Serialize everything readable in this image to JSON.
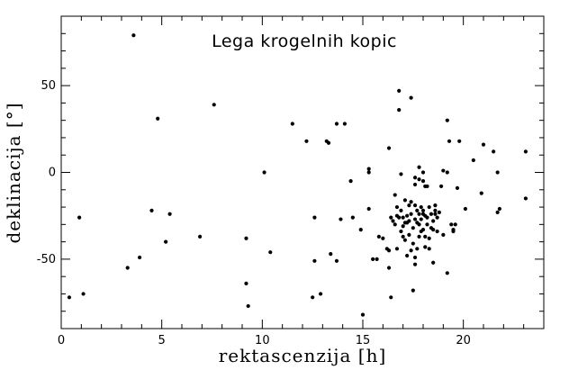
{
  "chart_data": {
    "type": "scatter",
    "title": "Lega krogelnih kopic",
    "xlabel": "rektascenzija [h]",
    "ylabel": "deklinacija [°]",
    "xlim": [
      0,
      24
    ],
    "ylim": [
      -90,
      90
    ],
    "x_ticks": [
      "0",
      "5",
      "10",
      "15",
      "20"
    ],
    "y_ticks": [
      "50",
      "0",
      "-50"
    ],
    "grid": false,
    "marker_color": "#000000",
    "points": [
      {
        "x": 3.6,
        "y": 79
      },
      {
        "x": 7.6,
        "y": 39
      },
      {
        "x": 4.8,
        "y": 31
      },
      {
        "x": 11.5,
        "y": 28
      },
      {
        "x": 13.7,
        "y": 28
      },
      {
        "x": 14.1,
        "y": 28
      },
      {
        "x": 12.2,
        "y": 18
      },
      {
        "x": 13.2,
        "y": 18
      },
      {
        "x": 13.3,
        "y": 17
      },
      {
        "x": 10.1,
        "y": 0
      },
      {
        "x": 0.9,
        "y": -26
      },
      {
        "x": 4.5,
        "y": -22
      },
      {
        "x": 5.4,
        "y": -24
      },
      {
        "x": 3.9,
        "y": -49
      },
      {
        "x": 3.3,
        "y": -55
      },
      {
        "x": 5.2,
        "y": -40
      },
      {
        "x": 6.9,
        "y": -37
      },
      {
        "x": 0.4,
        "y": -72
      },
      {
        "x": 1.1,
        "y": -70
      },
      {
        "x": 9.2,
        "y": -38
      },
      {
        "x": 9.2,
        "y": -64
      },
      {
        "x": 9.3,
        "y": -77
      },
      {
        "x": 10.4,
        "y": -46
      },
      {
        "x": 12.6,
        "y": -26
      },
      {
        "x": 12.6,
        "y": -51
      },
      {
        "x": 12.5,
        "y": -72
      },
      {
        "x": 12.9,
        "y": -70
      },
      {
        "x": 13.4,
        "y": -47
      },
      {
        "x": 13.7,
        "y": -51
      },
      {
        "x": 13.9,
        "y": -27
      },
      {
        "x": 14.4,
        "y": -5
      },
      {
        "x": 14.5,
        "y": -26
      },
      {
        "x": 14.9,
        "y": -33
      },
      {
        "x": 15.3,
        "y": 0
      },
      {
        "x": 15.3,
        "y": 2
      },
      {
        "x": 15.3,
        "y": -21
      },
      {
        "x": 15.5,
        "y": -50
      },
      {
        "x": 15.7,
        "y": -50
      },
      {
        "x": 15.0,
        "y": -82
      },
      {
        "x": 15.8,
        "y": -37
      },
      {
        "x": 16.0,
        "y": -38
      },
      {
        "x": 16.2,
        "y": -44
      },
      {
        "x": 16.3,
        "y": -55
      },
      {
        "x": 16.4,
        "y": -72
      },
      {
        "x": 16.4,
        "y": -26
      },
      {
        "x": 16.3,
        "y": 14
      },
      {
        "x": 16.6,
        "y": -13
      },
      {
        "x": 16.6,
        "y": -30
      },
      {
        "x": 16.7,
        "y": -20
      },
      {
        "x": 16.7,
        "y": -44
      },
      {
        "x": 16.8,
        "y": 36
      },
      {
        "x": 16.8,
        "y": 47
      },
      {
        "x": 16.9,
        "y": -1
      },
      {
        "x": 17.0,
        "y": -26
      },
      {
        "x": 17.0,
        "y": -31
      },
      {
        "x": 17.1,
        "y": -29
      },
      {
        "x": 17.2,
        "y": -25
      },
      {
        "x": 17.3,
        "y": -19
      },
      {
        "x": 17.3,
        "y": -36
      },
      {
        "x": 17.4,
        "y": -17
      },
      {
        "x": 17.4,
        "y": -24
      },
      {
        "x": 17.4,
        "y": 43
      },
      {
        "x": 17.6,
        "y": -3
      },
      {
        "x": 17.6,
        "y": -27
      },
      {
        "x": 17.6,
        "y": -49
      },
      {
        "x": 17.6,
        "y": -53
      },
      {
        "x": 17.7,
        "y": -22
      },
      {
        "x": 17.7,
        "y": -44
      },
      {
        "x": 17.8,
        "y": -4
      },
      {
        "x": 17.8,
        "y": 3
      },
      {
        "x": 17.8,
        "y": -30
      },
      {
        "x": 17.8,
        "y": -37
      },
      {
        "x": 17.9,
        "y": -20
      },
      {
        "x": 18.0,
        "y": -24
      },
      {
        "x": 18.0,
        "y": -33
      },
      {
        "x": 18.1,
        "y": -8
      },
      {
        "x": 18.1,
        "y": -43
      },
      {
        "x": 18.1,
        "y": -25
      },
      {
        "x": 18.2,
        "y": -8
      },
      {
        "x": 18.2,
        "y": -30
      },
      {
        "x": 18.3,
        "y": -38
      },
      {
        "x": 18.4,
        "y": -24
      },
      {
        "x": 18.4,
        "y": -32
      },
      {
        "x": 18.5,
        "y": -52
      },
      {
        "x": 18.6,
        "y": -24
      },
      {
        "x": 18.6,
        "y": -22
      },
      {
        "x": 18.7,
        "y": -26
      },
      {
        "x": 18.9,
        "y": -8
      },
      {
        "x": 19.0,
        "y": -36
      },
      {
        "x": 19.0,
        "y": 1
      },
      {
        "x": 19.2,
        "y": 0
      },
      {
        "x": 19.2,
        "y": -58
      },
      {
        "x": 19.2,
        "y": 30
      },
      {
        "x": 19.3,
        "y": 18
      },
      {
        "x": 19.4,
        "y": -30
      },
      {
        "x": 19.5,
        "y": -34
      },
      {
        "x": 19.6,
        "y": -30
      },
      {
        "x": 19.7,
        "y": -9
      },
      {
        "x": 19.8,
        "y": 18
      },
      {
        "x": 20.1,
        "y": -21
      },
      {
        "x": 20.5,
        "y": 7
      },
      {
        "x": 20.9,
        "y": -12
      },
      {
        "x": 21.0,
        "y": 16
      },
      {
        "x": 21.5,
        "y": 12
      },
      {
        "x": 21.7,
        "y": -23
      },
      {
        "x": 21.7,
        "y": 0
      },
      {
        "x": 21.8,
        "y": -21
      },
      {
        "x": 23.1,
        "y": 12
      },
      {
        "x": 23.1,
        "y": -15
      },
      {
        "x": 16.3,
        "y": -45
      },
      {
        "x": 16.5,
        "y": -28
      },
      {
        "x": 16.7,
        "y": -25
      },
      {
        "x": 16.9,
        "y": -22
      },
      {
        "x": 16.9,
        "y": -34
      },
      {
        "x": 17.1,
        "y": -39
      },
      {
        "x": 17.2,
        "y": -48
      },
      {
        "x": 17.3,
        "y": -28
      },
      {
        "x": 17.5,
        "y": -32
      },
      {
        "x": 17.5,
        "y": -41
      },
      {
        "x": 17.6,
        "y": -7
      },
      {
        "x": 17.7,
        "y": -29
      },
      {
        "x": 17.8,
        "y": -24
      },
      {
        "x": 17.9,
        "y": -34
      },
      {
        "x": 17.9,
        "y": -27
      },
      {
        "x": 18.0,
        "y": 0
      },
      {
        "x": 18.0,
        "y": -22
      },
      {
        "x": 18.1,
        "y": -37
      },
      {
        "x": 18.2,
        "y": -26
      },
      {
        "x": 18.3,
        "y": -44
      },
      {
        "x": 18.3,
        "y": -20
      },
      {
        "x": 18.5,
        "y": -28
      },
      {
        "x": 18.5,
        "y": -33
      },
      {
        "x": 18.6,
        "y": -19
      },
      {
        "x": 18.7,
        "y": -34
      },
      {
        "x": 18.8,
        "y": -23
      },
      {
        "x": 19.5,
        "y": -33
      },
      {
        "x": 17.0,
        "y": -37
      },
      {
        "x": 16.8,
        "y": -26
      },
      {
        "x": 17.1,
        "y": -16
      },
      {
        "x": 17.4,
        "y": -45
      },
      {
        "x": 18.0,
        "y": -5
      },
      {
        "x": 17.6,
        "y": -19
      },
      {
        "x": 17.2,
        "y": -29
      },
      {
        "x": 17.5,
        "y": -68
      }
    ]
  }
}
